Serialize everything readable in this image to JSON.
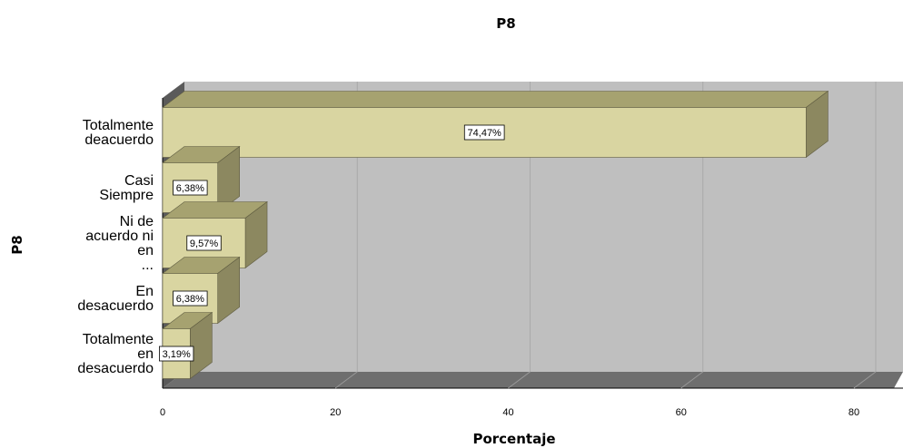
{
  "chart_data": {
    "type": "bar",
    "orientation": "horizontal",
    "title": "P8",
    "xlabel": "Porcentaje",
    "ylabel": "P8",
    "xlim": [
      0,
      80
    ],
    "xticks": [
      "0",
      "20",
      "40",
      "60",
      "80"
    ],
    "grid": true,
    "categories": [
      [
        "Totalmente",
        "deacuerdo"
      ],
      [
        "Casi",
        "Siempre"
      ],
      [
        "Ni de",
        "acuerdo ni",
        "en",
        "..."
      ],
      [
        "En",
        "desacuerdo"
      ],
      [
        "Totalmente",
        "en",
        "desacuerdo"
      ]
    ],
    "values": [
      74.47,
      6.38,
      9.57,
      6.38,
      3.19
    ],
    "data_labels": [
      "74,47%",
      "6,38%",
      "9,57%",
      "6,38%",
      "3,19%"
    ],
    "colors": {
      "bar_front": "#d9d5a1",
      "bar_top": "#a6a270",
      "bar_side": "#8c8860",
      "wall": "#bfbfbf",
      "floor": "#6e6e6e",
      "side_wall": "#5a5a5a",
      "grid": "#a9a9a9"
    }
  }
}
